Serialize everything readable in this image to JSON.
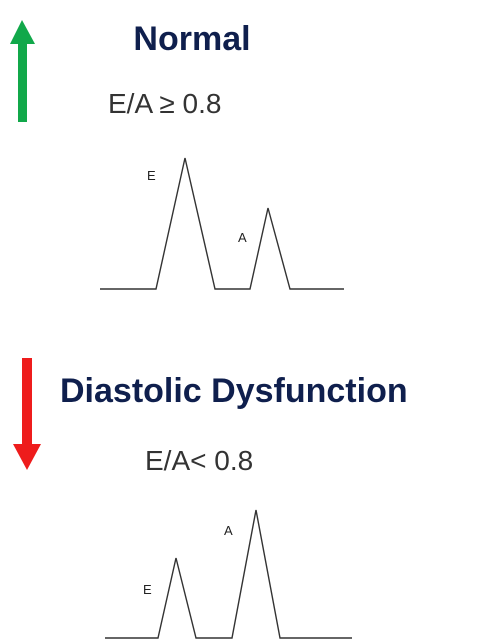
{
  "normal": {
    "title": "Normal",
    "ratio": "E/A ≥ 0.8",
    "e_label": "E",
    "a_label": "A"
  },
  "dysfunction": {
    "title": "Diastolic Dysfunction",
    "ratio": "E/A< 0.8",
    "e_label": "E",
    "a_label": "A"
  }
}
